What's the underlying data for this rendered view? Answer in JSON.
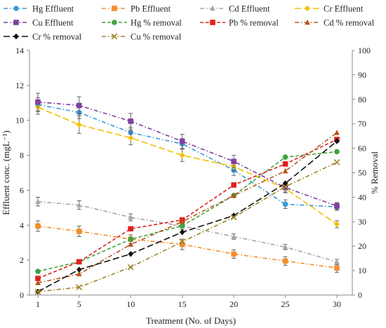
{
  "chart_data": {
    "type": "line",
    "xlabel": "Treatment (No. of Days)",
    "ylabel_left": "Effluent conc. (mgL⁻¹)",
    "ylabel_right": "% Removal",
    "x": [
      1,
      5,
      10,
      15,
      20,
      25,
      30
    ],
    "x_ticks": [
      "1",
      "5",
      "10",
      "15",
      "20",
      "25",
      "30"
    ],
    "ylim_left": [
      0,
      14
    ],
    "ylim_right": [
      0,
      100
    ],
    "yticks_left": [
      "0",
      "2",
      "4",
      "6",
      "8",
      "10",
      "12",
      "14"
    ],
    "yticks_right": [
      "0",
      "10",
      "20",
      "30",
      "40",
      "50",
      "60",
      "70",
      "80",
      "90",
      "100"
    ],
    "grid": false,
    "legend_position": "top",
    "series": [
      {
        "name": "Hg Effluent",
        "axis": "left",
        "color": "#3a9ad9",
        "dash": "dashdot",
        "marker": "circle",
        "values": [
          10.9,
          10.45,
          9.3,
          8.65,
          7.15,
          5.2,
          5.05
        ],
        "err": [
          0.4,
          0.35,
          0.3,
          0.3,
          0.3,
          0.25,
          0.2
        ]
      },
      {
        "name": "Pb Effluent",
        "axis": "left",
        "color": "#f28e2b",
        "dash": "dashdot",
        "marker": "square",
        "values": [
          3.95,
          3.65,
          3.2,
          2.9,
          2.35,
          1.95,
          1.55
        ],
        "err": [
          0.3,
          0.3,
          0.25,
          0.3,
          0.25,
          0.25,
          0.25
        ]
      },
      {
        "name": "Cd Effluent",
        "axis": "left",
        "color": "#a6a6a6",
        "dash": "dashdot",
        "marker": "triangle",
        "values": [
          5.35,
          5.15,
          4.45,
          3.95,
          3.35,
          2.75,
          1.9
        ],
        "err": [
          0.25,
          0.25,
          0.2,
          0.2,
          0.15,
          0.15,
          0.15
        ]
      },
      {
        "name": "Cr Effluent",
        "axis": "left",
        "color": "#f5c000",
        "dash": "longdash",
        "marker": "diamond",
        "values": [
          10.75,
          9.75,
          9.0,
          8.0,
          7.35,
          6.1,
          4.05
        ],
        "err": [
          0.4,
          0.5,
          0.4,
          0.35,
          0.25,
          0.2,
          0.2
        ]
      },
      {
        "name": "Cu Effluent",
        "axis": "left",
        "color": "#7f3fa0",
        "dash": "dashdot",
        "marker": "square",
        "values": [
          11.05,
          10.85,
          9.95,
          8.8,
          7.65,
          6.15,
          5.1
        ],
        "err": [
          0.5,
          0.5,
          0.45,
          0.4,
          0.35,
          0.3,
          0.2
        ]
      },
      {
        "name": "Hg % removal",
        "axis": "right",
        "color": "#3ea33e",
        "dash": "dash",
        "marker": "circle",
        "values": [
          9.7,
          13.6,
          22.8,
          28.3,
          40.7,
          56.4,
          58.6
        ]
      },
      {
        "name": "Pb % removal",
        "axis": "right",
        "color": "#e0201b",
        "dash": "dash",
        "marker": "square",
        "values": [
          6.8,
          13.6,
          27.1,
          30.7,
          45.0,
          53.6,
          63.6
        ]
      },
      {
        "name": "Cd % removal",
        "axis": "right",
        "color": "#b5541b",
        "dash": "dashdot",
        "marker": "triangle",
        "values": [
          5.0,
          8.6,
          20.7,
          30.0,
          40.7,
          50.7,
          66.4
        ]
      },
      {
        "name": "Cr % removal",
        "axis": "right",
        "color": "#111111",
        "dash": "longdash",
        "marker": "diamond",
        "values": [
          1.4,
          10.4,
          16.8,
          25.7,
          32.5,
          45.7,
          62.9
        ]
      },
      {
        "name": "Cu % removal",
        "axis": "right",
        "color": "#a08327",
        "dash": "dashdot",
        "marker": "x",
        "values": [
          1.4,
          3.2,
          11.4,
          21.8,
          31.8,
          44.3,
          54.3
        ]
      }
    ]
  }
}
